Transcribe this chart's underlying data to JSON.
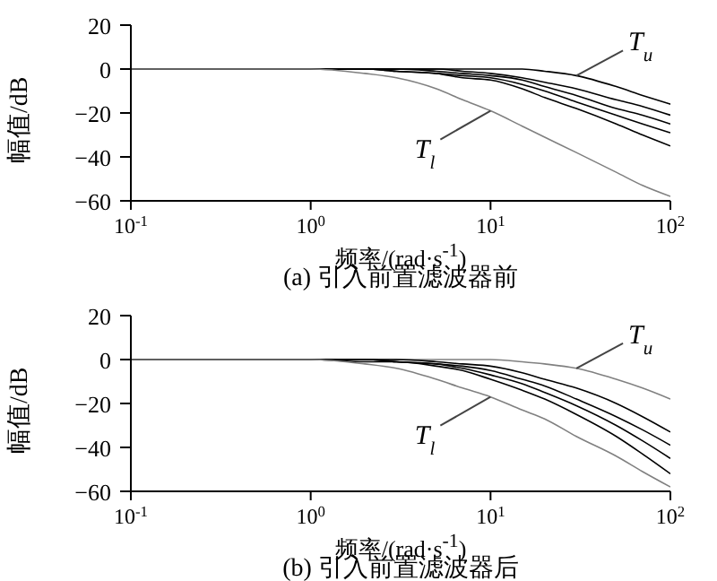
{
  "chart_data": [
    {
      "type": "line",
      "title": "(a) 引入前置滤波器前",
      "xlabel": "频率/(rad·s$^{-1}$)",
      "ylabel": "幅值/dB",
      "log": "x",
      "grid": false,
      "legend": false,
      "marker": "none",
      "line_style": "solid",
      "x": [
        0.1,
        0.5,
        1,
        2,
        3,
        5,
        7,
        10,
        15,
        20,
        30,
        50,
        70,
        100
      ],
      "xlim": [
        0.1,
        100
      ],
      "xticks": [
        {
          "value": 0.1,
          "label": "10$^{-1}$"
        },
        {
          "value": 1,
          "label": "10$^{0}$"
        },
        {
          "value": 10,
          "label": "10$^{1}$"
        },
        {
          "value": 100,
          "label": "10$^{2}$"
        }
      ],
      "ylim": [
        -60,
        20
      ],
      "yticks": [
        -60,
        -40,
        -20,
        0,
        20
      ],
      "series": [
        {
          "name": "T$_{u}$",
          "color": "#000000",
          "values": [
            0,
            0,
            0,
            0,
            0,
            0,
            0,
            0,
            0,
            -1,
            -3,
            -8,
            -12,
            -16
          ]
        },
        {
          "color": "#000000",
          "values": [
            0,
            0,
            0,
            0,
            0,
            0,
            -1,
            -2,
            -4,
            -6,
            -9,
            -14,
            -17,
            -21
          ]
        },
        {
          "color": "#000000",
          "values": [
            0,
            0,
            0,
            0,
            0,
            -1,
            -2,
            -3,
            -5,
            -8,
            -12,
            -18,
            -21,
            -25
          ]
        },
        {
          "color": "#000000",
          "values": [
            0,
            0,
            0,
            0,
            -1,
            -2,
            -3,
            -4,
            -7,
            -10,
            -15,
            -21,
            -25,
            -29
          ]
        },
        {
          "color": "#000000",
          "values": [
            0,
            0,
            0,
            0,
            -1,
            -2,
            -4,
            -5,
            -9,
            -13,
            -18,
            -25,
            -30,
            -35
          ]
        },
        {
          "name": "T$_{l}$",
          "color": "#808080",
          "values": [
            0,
            0,
            0,
            -2,
            -4,
            -9,
            -14,
            -19,
            -26,
            -31,
            -38,
            -47,
            -53,
            -58
          ]
        }
      ]
    },
    {
      "type": "line",
      "title": "(b) 引入前置滤波器后",
      "xlabel": "频率/(rad·s$^{-1}$)",
      "ylabel": "幅值/dB",
      "log": "x",
      "grid": false,
      "legend": false,
      "marker": "none",
      "line_style": "solid",
      "x": [
        0.1,
        0.5,
        1,
        2,
        3,
        5,
        7,
        10,
        15,
        20,
        30,
        50,
        70,
        100
      ],
      "xlim": [
        0.1,
        100
      ],
      "xticks": [
        {
          "value": 0.1,
          "label": "10$^{-1}$"
        },
        {
          "value": 1,
          "label": "10$^{0}$"
        },
        {
          "value": 10,
          "label": "10$^{1}$"
        },
        {
          "value": 100,
          "label": "10$^{2}$"
        }
      ],
      "ylim": [
        -60,
        20
      ],
      "yticks": [
        -60,
        -40,
        -20,
        0,
        20
      ],
      "series": [
        {
          "name": "T$_{u}$",
          "color": "#808080",
          "values": [
            0,
            0,
            0,
            0,
            0,
            0,
            0,
            0,
            -1,
            -2,
            -4,
            -9,
            -13,
            -18
          ]
        },
        {
          "color": "#000000",
          "values": [
            0,
            0,
            0,
            0,
            0,
            -1,
            -2,
            -3,
            -6,
            -9,
            -13,
            -20,
            -26,
            -33
          ]
        },
        {
          "color": "#000000",
          "values": [
            0,
            0,
            0,
            0,
            -1,
            -2,
            -3,
            -5,
            -9,
            -12,
            -18,
            -26,
            -32,
            -39
          ]
        },
        {
          "color": "#000000",
          "values": [
            0,
            0,
            0,
            0,
            -1,
            -2,
            -4,
            -7,
            -11,
            -15,
            -21,
            -30,
            -37,
            -45
          ]
        },
        {
          "color": "#000000",
          "values": [
            0,
            0,
            0,
            -1,
            -1,
            -3,
            -5,
            -9,
            -14,
            -18,
            -25,
            -35,
            -43,
            -52
          ]
        },
        {
          "name": "T$_{l}$",
          "color": "#808080",
          "values": [
            0,
            0,
            0,
            -2,
            -4,
            -9,
            -13,
            -17,
            -23,
            -27,
            -35,
            -44,
            -51,
            -58
          ]
        }
      ]
    }
  ]
}
